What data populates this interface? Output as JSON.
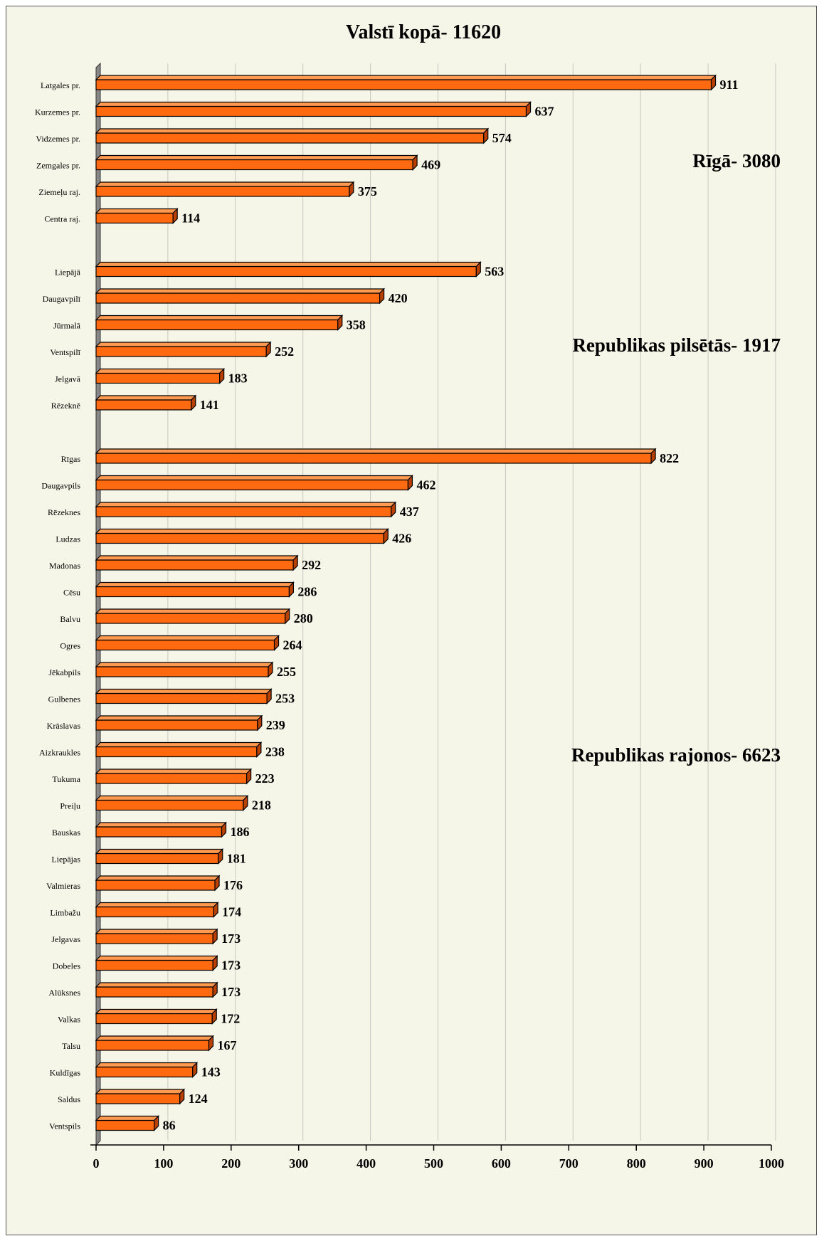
{
  "chart_data": {
    "type": "bar",
    "orientation": "horizontal",
    "title": "Valstī kopā- 11620",
    "xlim": [
      0,
      1000
    ],
    "x_ticks": [
      "0",
      "100",
      "200",
      "300",
      "400",
      "500",
      "600",
      "700",
      "800",
      "900",
      "1000"
    ],
    "grid": true,
    "colors": {
      "bar": "#ff6a10",
      "bar_top": "#ff9a50",
      "bar_side": "#b84000",
      "outline": "#000000",
      "wall": "#888888",
      "gridline": "#c8c8c0"
    },
    "groups": [
      {
        "label": "Rīgā-  3080",
        "categories": [
          "Latgales pr.",
          "Kurzemes pr.",
          "Vidzemes pr.",
          "Zemgales pr.",
          "Ziemeļu raj.",
          "Centra raj."
        ],
        "values": [
          911,
          637,
          574,
          469,
          375,
          114
        ]
      },
      {
        "label": "Republikas pilsētās- 1917",
        "categories": [
          "Liepājā",
          "Daugavpilī",
          "Jūrmalā",
          "Ventspilī",
          "Jelgavā",
          "Rēzeknē"
        ],
        "values": [
          563,
          420,
          358,
          252,
          183,
          141
        ]
      },
      {
        "label": "Republikas rajonos-  6623",
        "categories": [
          "Rīgas",
          "Daugavpils",
          "Rēzeknes",
          "Ludzas",
          "Madonas",
          "Cēsu",
          "Balvu",
          "Ogres",
          "Jēkabpils",
          "Gulbenes",
          "Krāslavas",
          "Aizkraukles",
          "Tukuma",
          "Preiļu",
          "Bauskas",
          "Liepājas",
          "Valmieras",
          "Limbažu",
          "Jelgavas",
          "Dobeles",
          "Alūksnes",
          "Valkas",
          "Talsu",
          "Kuldīgas",
          "Saldus",
          "Ventspils"
        ],
        "values": [
          822,
          462,
          437,
          426,
          292,
          286,
          280,
          264,
          255,
          253,
          239,
          238,
          223,
          218,
          186,
          181,
          176,
          174,
          173,
          173,
          173,
          172,
          167,
          143,
          124,
          86
        ]
      }
    ]
  }
}
